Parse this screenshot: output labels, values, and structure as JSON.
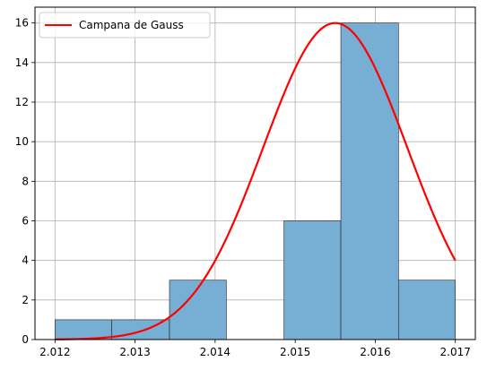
{
  "chart_data": {
    "type": "bar",
    "title": "",
    "xlabel": "",
    "ylabel": "",
    "xlim": [
      2.01175,
      2.01725
    ],
    "ylim": [
      0,
      16.8
    ],
    "grid": true,
    "legend_position": "upper-left",
    "x_ticks": [
      2.012,
      2.013,
      2.014,
      2.015,
      2.016,
      2.017
    ],
    "x_tick_labels": [
      "2.012",
      "2.013",
      "2.014",
      "2.015",
      "2.016",
      "2.017"
    ],
    "y_ticks": [
      0,
      2,
      4,
      6,
      8,
      10,
      12,
      14,
      16
    ],
    "y_tick_labels": [
      "0",
      "2",
      "4",
      "6",
      "8",
      "10",
      "12",
      "14",
      "16"
    ],
    "histogram": {
      "bin_edges": [
        2.012,
        2.01271,
        2.01343,
        2.01414,
        2.01486,
        2.01557,
        2.01629,
        2.017
      ],
      "counts": [
        1,
        1,
        3,
        0,
        6,
        16,
        3
      ],
      "color": "#77aed4",
      "edge_color": "#1f1f1f"
    },
    "series": [
      {
        "name": "Campana de Gauss",
        "type": "line",
        "color": "#ff0000",
        "curve": {
          "kind": "gaussian",
          "amplitude": 16,
          "mean": 2.0155,
          "std": 0.0009
        },
        "x_range": [
          2.012,
          2.017
        ]
      }
    ]
  }
}
